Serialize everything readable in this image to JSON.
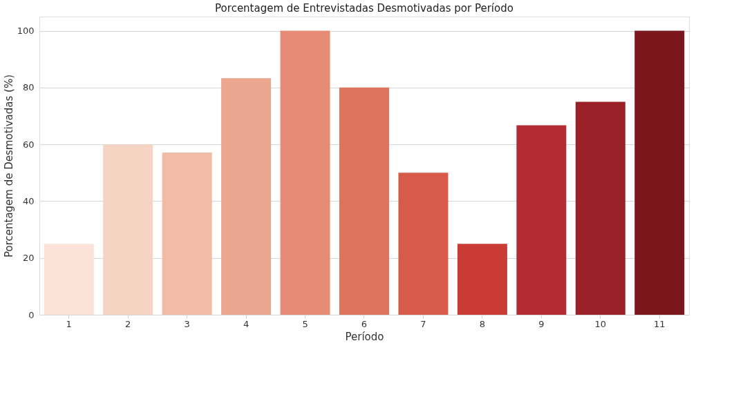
{
  "chart_data": {
    "type": "bar",
    "title": "Porcentagem de Entrevistadas Desmotivadas por Período",
    "xlabel": "Período",
    "ylabel": "Porcentagem de Desmotivadas (%)",
    "categories": [
      "1",
      "2",
      "3",
      "4",
      "5",
      "6",
      "7",
      "8",
      "9",
      "10",
      "11"
    ],
    "values": [
      25,
      60,
      57.1,
      83.3,
      100,
      80,
      50,
      25,
      66.7,
      75,
      100
    ],
    "colors": [
      "#fbe3d9",
      "#f6d4c3",
      "#f1bba5",
      "#eba68f",
      "#e68b76",
      "#e0735e",
      "#d85a4b",
      "#cb3b35",
      "#b32b32",
      "#9a2127",
      "#7b171c"
    ],
    "ylim": [
      0,
      105
    ],
    "yticks": [
      0,
      20,
      40,
      60,
      80,
      100
    ],
    "grid": "y"
  }
}
